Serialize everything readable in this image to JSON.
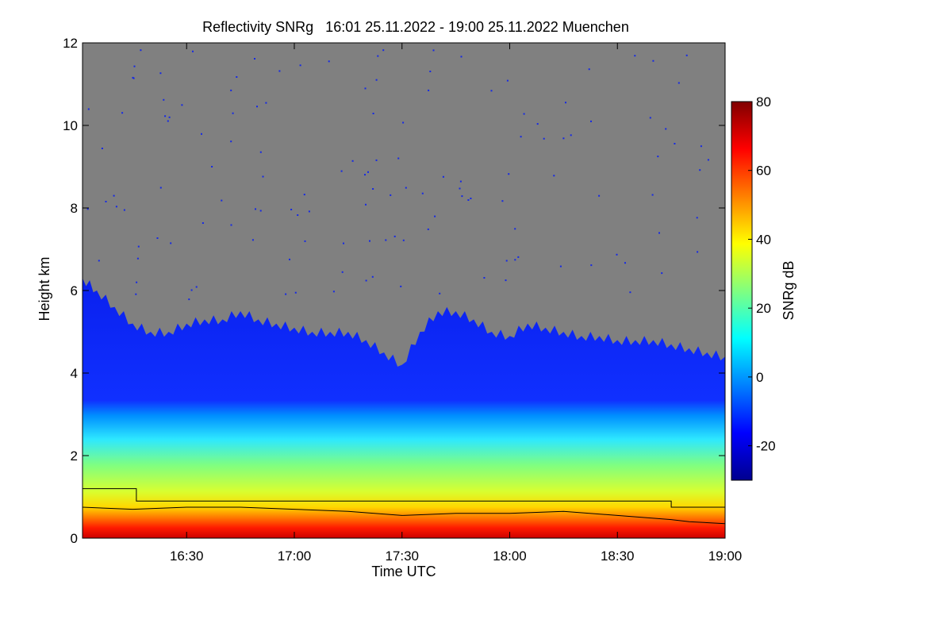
{
  "chart_data": {
    "type": "heatmap",
    "title": "Reflectivity SNRg   16:01 25.11.2022 - 19:00 25.11.2022 Muenchen",
    "xlabel": "Time UTC",
    "ylabel": "Height km",
    "x_ticks": [
      "16:30",
      "17:00",
      "17:30",
      "18:00",
      "18:30",
      "19:00"
    ],
    "x_tick_minutes": [
      990,
      1020,
      1050,
      1080,
      1110,
      1140
    ],
    "xlim_minutes": [
      961,
      1140
    ],
    "y_ticks": [
      0,
      2,
      4,
      6,
      8,
      10,
      12
    ],
    "ylim": [
      0,
      12
    ],
    "colorbar": {
      "label": "SNRg dB",
      "range": [
        -30,
        80
      ],
      "ticks": [
        -20,
        0,
        20,
        40,
        60,
        80
      ],
      "colors": [
        "#00008f",
        "#0000ff",
        "#0080ff",
        "#00ffff",
        "#80ff80",
        "#ffff00",
        "#ff8000",
        "#ff0000",
        "#800000"
      ]
    },
    "background_color": "#808080",
    "echo_top_km": [
      [
        961,
        6.3
      ],
      [
        965,
        6.0
      ],
      [
        970,
        5.6
      ],
      [
        975,
        5.2
      ],
      [
        980,
        5.0
      ],
      [
        985,
        5.0
      ],
      [
        990,
        5.2
      ],
      [
        995,
        5.3
      ],
      [
        1000,
        5.3
      ],
      [
        1005,
        5.5
      ],
      [
        1010,
        5.3
      ],
      [
        1015,
        5.2
      ],
      [
        1020,
        5.1
      ],
      [
        1025,
        5.0
      ],
      [
        1030,
        5.0
      ],
      [
        1035,
        5.0
      ],
      [
        1040,
        4.8
      ],
      [
        1045,
        4.5
      ],
      [
        1050,
        4.2
      ],
      [
        1055,
        5.0
      ],
      [
        1060,
        5.5
      ],
      [
        1065,
        5.5
      ],
      [
        1070,
        5.3
      ],
      [
        1075,
        5.0
      ],
      [
        1080,
        4.9
      ],
      [
        1085,
        5.2
      ],
      [
        1090,
        5.1
      ],
      [
        1095,
        5.0
      ],
      [
        1100,
        4.9
      ],
      [
        1105,
        4.9
      ],
      [
        1110,
        4.8
      ],
      [
        1115,
        4.8
      ],
      [
        1120,
        4.8
      ],
      [
        1125,
        4.7
      ],
      [
        1130,
        4.6
      ],
      [
        1135,
        4.5
      ],
      [
        1140,
        4.4
      ]
    ],
    "line_upper_km": [
      [
        961,
        1.2
      ],
      [
        976,
        1.2
      ],
      [
        976,
        0.9
      ],
      [
        1125,
        0.9
      ],
      [
        1125,
        0.75
      ],
      [
        1140,
        0.75
      ]
    ],
    "line_lower_km": [
      [
        961,
        0.75
      ],
      [
        975,
        0.7
      ],
      [
        990,
        0.75
      ],
      [
        1005,
        0.75
      ],
      [
        1020,
        0.7
      ],
      [
        1035,
        0.65
      ],
      [
        1050,
        0.55
      ],
      [
        1065,
        0.6
      ],
      [
        1080,
        0.6
      ],
      [
        1095,
        0.65
      ],
      [
        1110,
        0.55
      ],
      [
        1125,
        0.45
      ],
      [
        1130,
        0.4
      ],
      [
        1140,
        0.35
      ]
    ]
  }
}
